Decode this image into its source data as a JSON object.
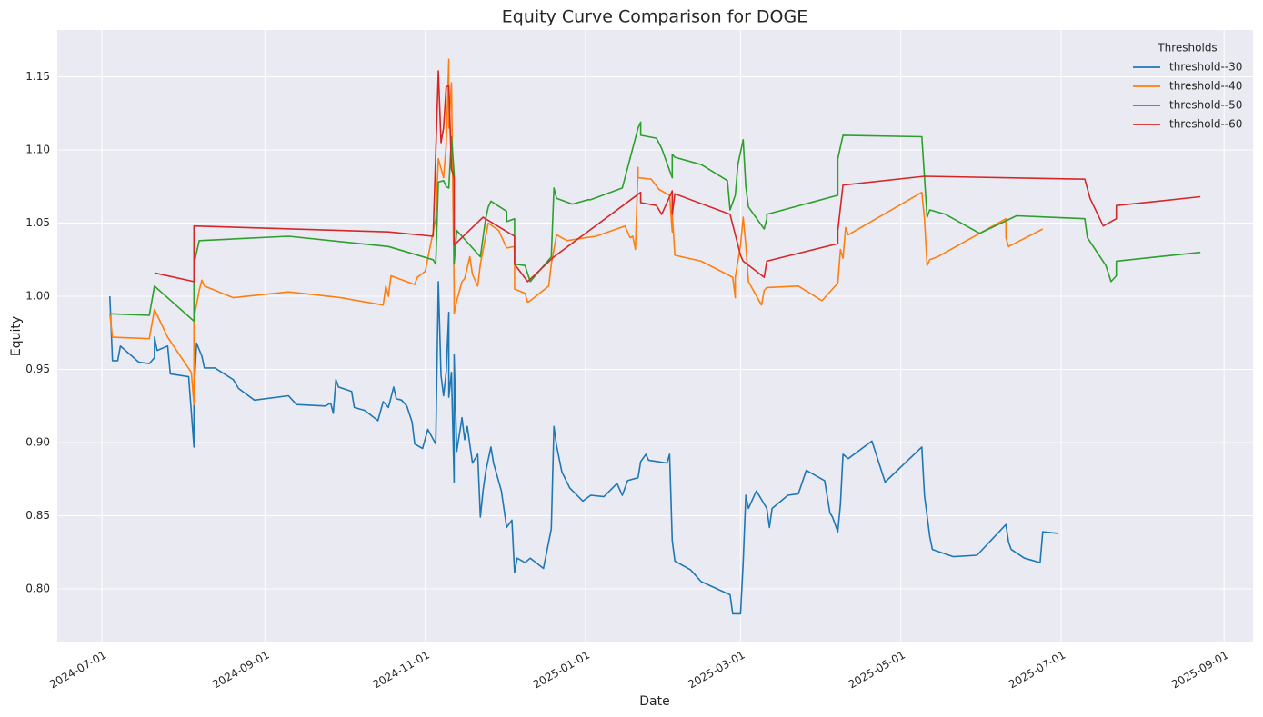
{
  "chart_data": {
    "type": "line",
    "title": "Equity Curve Comparison for DOGE",
    "x_label": "Date",
    "y_label": "Equity",
    "legend_title": "Thresholds",
    "legend_position": "upper right",
    "grid": true,
    "xlim": [
      "2024-06-14",
      "2025-09-12"
    ],
    "xticks": [
      "2024-07-01",
      "2024-09-01",
      "2024-11-01",
      "2025-01-01",
      "2025-03-01",
      "2025-05-01",
      "2025-07-01",
      "2025-09-01"
    ],
    "ylim": [
      0.764,
      1.182
    ],
    "yticks": [
      {
        "value": 0.8,
        "label": "0.80"
      },
      0.85,
      {
        "value": 0.9,
        "label": "0.90"
      },
      0.95,
      {
        "value": 1.0,
        "label": "1.00"
      },
      1.05,
      {
        "value": 1.1,
        "label": "1.10"
      },
      1.15
    ],
    "series": [
      {
        "name": "threshold--30",
        "color": "#1f77b4",
        "x": [
          "2024-07-04",
          "2024-07-05",
          "2024-07-07",
          "2024-07-08",
          "2024-07-15",
          "2024-07-19",
          "2024-07-21",
          "2024-07-21",
          "2024-07-22",
          "2024-07-26",
          "2024-07-27",
          "2024-08-03",
          "2024-08-05",
          "2024-08-05",
          "2024-08-06",
          "2024-08-08",
          "2024-08-09",
          "2024-08-13",
          "2024-08-20",
          "2024-08-22",
          "2024-08-28",
          "2024-09-10",
          "2024-09-13",
          "2024-09-24",
          "2024-09-26",
          "2024-09-27",
          "2024-09-28",
          "2024-09-29",
          "2024-10-04",
          "2024-10-05",
          "2024-10-09",
          "2024-10-14",
          "2024-10-16",
          "2024-10-18",
          "2024-10-20",
          "2024-10-21",
          "2024-10-23",
          "2024-10-25",
          "2024-10-27",
          "2024-10-28",
          "2024-10-31",
          "2024-11-02",
          "2024-11-05",
          "2024-11-06",
          "2024-11-07",
          "2024-11-08",
          "2024-11-09",
          "2024-11-10",
          "2024-11-10",
          "2024-11-11",
          "2024-11-12",
          "2024-11-12",
          "2024-11-13",
          "2024-11-15",
          "2024-11-16",
          "2024-11-17",
          "2024-11-19",
          "2024-11-21",
          "2024-11-22",
          "2024-11-23",
          "2024-11-24",
          "2024-11-26",
          "2024-11-27",
          "2024-11-30",
          "2024-12-02",
          "2024-12-04",
          "2024-12-05",
          "2024-12-06",
          "2024-12-09",
          "2024-12-11",
          "2024-12-16",
          "2024-12-19",
          "2024-12-20",
          "2024-12-21",
          "2024-12-23",
          "2024-12-26",
          "2024-12-31",
          "2025-01-03",
          "2025-01-08",
          "2025-01-13",
          "2025-01-15",
          "2025-01-17",
          "2025-01-21",
          "2025-01-22",
          "2025-01-24",
          "2025-01-25",
          "2025-02-01",
          "2025-02-02",
          "2025-02-03",
          "2025-02-04",
          "2025-02-10",
          "2025-02-14",
          "2025-02-25",
          "2025-02-26",
          "2025-03-01",
          "2025-03-02",
          "2025-03-03",
          "2025-03-04",
          "2025-03-07",
          "2025-03-11",
          "2025-03-12",
          "2025-03-13",
          "2025-03-19",
          "2025-03-23",
          "2025-03-26",
          "2025-04-02",
          "2025-04-04",
          "2025-04-05",
          "2025-04-07",
          "2025-04-08",
          "2025-04-09",
          "2025-04-11",
          "2025-04-20",
          "2025-04-25",
          "2025-05-09",
          "2025-05-10",
          "2025-05-12",
          "2025-05-13",
          "2025-05-21",
          "2025-05-30",
          "2025-06-10",
          "2025-06-11",
          "2025-06-12",
          "2025-06-17",
          "2025-06-23",
          "2025-06-24",
          "2025-06-30"
        ],
        "values": [
          1.0,
          0.956,
          0.956,
          0.966,
          0.955,
          0.954,
          0.958,
          0.972,
          0.963,
          0.966,
          0.947,
          0.945,
          0.897,
          0.935,
          0.968,
          0.959,
          0.951,
          0.951,
          0.943,
          0.937,
          0.929,
          0.932,
          0.926,
          0.925,
          0.927,
          0.92,
          0.943,
          0.938,
          0.935,
          0.924,
          0.922,
          0.915,
          0.928,
          0.924,
          0.938,
          0.93,
          0.929,
          0.925,
          0.914,
          0.899,
          0.896,
          0.909,
          0.899,
          1.01,
          0.946,
          0.932,
          0.948,
          0.989,
          0.931,
          0.948,
          0.873,
          0.96,
          0.894,
          0.917,
          0.902,
          0.911,
          0.886,
          0.892,
          0.849,
          0.867,
          0.88,
          0.897,
          0.886,
          0.867,
          0.842,
          0.847,
          0.811,
          0.821,
          0.818,
          0.821,
          0.814,
          0.841,
          0.911,
          0.898,
          0.88,
          0.869,
          0.86,
          0.864,
          0.863,
          0.872,
          0.864,
          0.874,
          0.876,
          0.887,
          0.892,
          0.888,
          0.886,
          0.892,
          0.833,
          0.819,
          0.813,
          0.805,
          0.796,
          0.783,
          0.783,
          0.818,
          0.864,
          0.855,
          0.867,
          0.855,
          0.842,
          0.855,
          0.864,
          0.865,
          0.881,
          0.874,
          0.852,
          0.849,
          0.839,
          0.858,
          0.892,
          0.889,
          0.901,
          0.873,
          0.897,
          0.864,
          0.836,
          0.827,
          0.822,
          0.823,
          0.844,
          0.832,
          0.827,
          0.821,
          0.818,
          0.839,
          0.838
        ]
      },
      {
        "name": "threshold--40",
        "color": "#ff7f0e",
        "x": [
          "2024-07-04",
          "2024-07-05",
          "2024-07-19",
          "2024-07-21",
          "2024-07-26",
          "2024-08-04",
          "2024-08-05",
          "2024-08-05",
          "2024-08-07",
          "2024-08-08",
          "2024-08-09",
          "2024-08-20",
          "2024-09-10",
          "2024-09-30",
          "2024-10-16",
          "2024-10-17",
          "2024-10-18",
          "2024-10-19",
          "2024-10-28",
          "2024-10-29",
          "2024-11-01",
          "2024-11-03",
          "2024-11-05",
          "2024-11-06",
          "2024-11-08",
          "2024-11-09",
          "2024-11-10",
          "2024-11-10",
          "2024-11-11",
          "2024-11-12",
          "2024-11-12",
          "2024-11-13",
          "2024-11-15",
          "2024-11-16",
          "2024-11-18",
          "2024-11-19",
          "2024-11-21",
          "2024-11-22",
          "2024-11-25",
          "2024-11-29",
          "2024-12-02",
          "2024-12-05",
          "2024-12-05",
          "2024-12-09",
          "2024-12-10",
          "2024-12-11",
          "2024-12-18",
          "2024-12-19",
          "2024-12-21",
          "2024-12-25",
          "2025-01-01",
          "2025-01-05",
          "2025-01-16",
          "2025-01-18",
          "2025-01-19",
          "2025-01-20",
          "2025-01-21",
          "2025-01-21",
          "2025-01-26",
          "2025-01-29",
          "2025-02-02",
          "2025-02-03",
          "2025-02-03",
          "2025-02-04",
          "2025-02-14",
          "2025-02-26",
          "2025-02-27",
          "2025-02-27",
          "2025-03-01",
          "2025-03-02",
          "2025-03-03",
          "2025-03-04",
          "2025-03-09",
          "2025-03-10",
          "2025-03-11",
          "2025-03-23",
          "2025-04-01",
          "2025-04-07",
          "2025-04-08",
          "2025-04-09",
          "2025-04-10",
          "2025-04-11",
          "2025-05-09",
          "2025-05-10",
          "2025-05-11",
          "2025-05-12",
          "2025-05-15",
          "2025-06-10",
          "2025-06-10",
          "2025-06-11",
          "2025-06-24"
        ],
        "values": [
          0.988,
          0.972,
          0.971,
          0.991,
          0.972,
          0.948,
          0.926,
          0.985,
          1.004,
          1.011,
          1.007,
          0.999,
          1.003,
          0.999,
          0.994,
          1.007,
          1.0,
          1.014,
          1.008,
          1.013,
          1.017,
          1.035,
          1.053,
          1.094,
          1.081,
          1.103,
          1.162,
          1.115,
          1.146,
          1.004,
          0.988,
          0.997,
          1.01,
          1.012,
          1.027,
          1.015,
          1.007,
          1.022,
          1.05,
          1.045,
          1.033,
          1.034,
          1.005,
          1.002,
          0.996,
          0.997,
          1.007,
          1.022,
          1.042,
          1.038,
          1.04,
          1.041,
          1.048,
          1.04,
          1.041,
          1.032,
          1.088,
          1.081,
          1.08,
          1.073,
          1.069,
          1.044,
          1.056,
          1.028,
          1.024,
          1.013,
          0.999,
          1.013,
          1.035,
          1.054,
          1.035,
          1.01,
          0.994,
          1.004,
          1.006,
          1.007,
          0.997,
          1.009,
          1.032,
          1.026,
          1.047,
          1.042,
          1.071,
          1.053,
          1.021,
          1.025,
          1.027,
          1.053,
          1.04,
          1.034,
          1.046
        ]
      },
      {
        "name": "threshold--50",
        "color": "#2ca02c",
        "x": [
          "2024-07-04",
          "2024-07-19",
          "2024-07-21",
          "2024-08-05",
          "2024-08-05",
          "2024-08-07",
          "2024-09-10",
          "2024-10-18",
          "2024-11-04",
          "2024-11-05",
          "2024-11-06",
          "2024-11-08",
          "2024-11-09",
          "2024-11-10",
          "2024-11-11",
          "2024-11-12",
          "2024-11-12",
          "2024-11-13",
          "2024-11-22",
          "2024-11-24",
          "2024-11-25",
          "2024-11-26",
          "2024-12-02",
          "2024-12-02",
          "2024-12-05",
          "2024-12-05",
          "2024-12-09",
          "2024-12-11",
          "2024-12-19",
          "2024-12-20",
          "2024-12-21",
          "2024-12-27",
          "2025-01-02",
          "2025-01-03",
          "2025-01-15",
          "2025-01-21",
          "2025-01-22",
          "2025-01-22",
          "2025-01-28",
          "2025-01-30",
          "2025-02-03",
          "2025-02-03",
          "2025-02-04",
          "2025-02-14",
          "2025-02-24",
          "2025-02-25",
          "2025-02-27",
          "2025-02-28",
          "2025-03-02",
          "2025-03-03",
          "2025-03-04",
          "2025-03-10",
          "2025-03-11",
          "2025-03-11",
          "2025-04-07",
          "2025-04-07",
          "2025-04-09",
          "2025-05-09",
          "2025-05-11",
          "2025-05-12",
          "2025-05-18",
          "2025-05-31",
          "2025-06-14",
          "2025-07-10",
          "2025-07-11",
          "2025-07-18",
          "2025-07-20",
          "2025-07-22",
          "2025-07-22",
          "2025-08-23"
        ],
        "values": [
          0.988,
          0.987,
          1.007,
          0.983,
          1.022,
          1.038,
          1.041,
          1.034,
          1.025,
          1.022,
          1.078,
          1.079,
          1.075,
          1.074,
          1.109,
          1.084,
          1.022,
          1.045,
          1.027,
          1.053,
          1.061,
          1.065,
          1.058,
          1.051,
          1.053,
          1.022,
          1.021,
          1.01,
          1.027,
          1.074,
          1.067,
          1.063,
          1.066,
          1.066,
          1.074,
          1.115,
          1.119,
          1.11,
          1.108,
          1.101,
          1.081,
          1.097,
          1.095,
          1.09,
          1.079,
          1.059,
          1.069,
          1.09,
          1.107,
          1.075,
          1.061,
          1.046,
          1.053,
          1.056,
          1.069,
          1.094,
          1.11,
          1.109,
          1.054,
          1.059,
          1.056,
          1.043,
          1.055,
          1.053,
          1.04,
          1.021,
          1.01,
          1.014,
          1.024,
          1.03
        ]
      },
      {
        "name": "threshold--60",
        "color": "#d62728",
        "x": [
          "2024-07-21",
          "2024-08-05",
          "2024-08-05",
          "2024-10-18",
          "2024-11-04",
          "2024-11-06",
          "2024-11-07",
          "2024-11-08",
          "2024-11-09",
          "2024-11-10",
          "2024-11-11",
          "2024-11-12",
          "2024-11-12",
          "2024-11-23",
          "2024-12-05",
          "2024-12-05",
          "2024-12-10",
          "2024-12-20",
          "2025-01-22",
          "2025-01-22",
          "2025-01-28",
          "2025-01-30",
          "2025-02-03",
          "2025-02-03",
          "2025-02-04",
          "2025-02-25",
          "2025-03-01",
          "2025-03-02",
          "2025-03-10",
          "2025-03-11",
          "2025-04-07",
          "2025-04-07",
          "2025-04-09",
          "2025-05-10",
          "2025-07-10",
          "2025-07-12",
          "2025-07-17",
          "2025-07-22",
          "2025-07-22",
          "2025-08-23"
        ],
        "values": [
          1.016,
          1.01,
          1.048,
          1.044,
          1.041,
          1.154,
          1.105,
          1.115,
          1.143,
          1.144,
          1.087,
          1.081,
          1.035,
          1.054,
          1.041,
          1.022,
          1.01,
          1.027,
          1.071,
          1.064,
          1.062,
          1.056,
          1.072,
          1.056,
          1.07,
          1.056,
          1.028,
          1.024,
          1.013,
          1.024,
          1.036,
          1.045,
          1.076,
          1.082,
          1.08,
          1.067,
          1.048,
          1.053,
          1.062,
          1.068
        ]
      }
    ]
  }
}
